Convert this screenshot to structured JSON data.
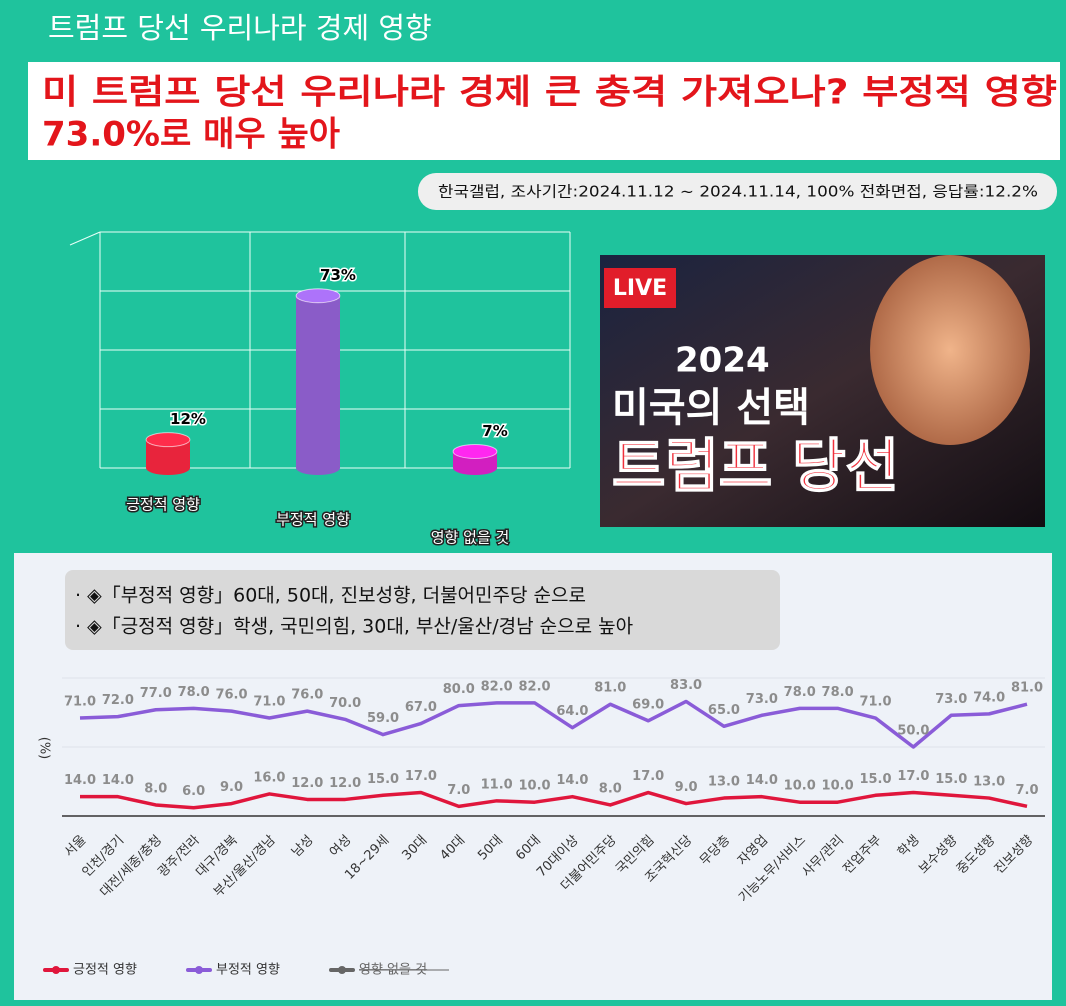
{
  "header": {
    "title": "트럼프 당선 우리나라 경제 영향",
    "headline": [
      "미 트럼프 당선 우리나라 경제 큰 충격 가져오나? 부정적 영향",
      "73.0%로 매우 높아"
    ],
    "source": "한국갤럽, 조사기간:2024.11.12 ~ 2024.11.14, 100% 전화면접, 응답률:12.2%"
  },
  "image": {
    "badge": "LIVE",
    "year": "2024",
    "subtitle": "미국의 선택",
    "caption": "트럼프 당선"
  },
  "bullets": [
    "· ◈「부정적 영향」60대, 50대, 진보성향, 더불어민주당 순으로",
    "· ◈「긍정적 영향」학생, 국민의힘, 30대, 부산/울산/경남 순으로 높아"
  ],
  "chart_data": [
    {
      "type": "cylinder",
      "categories": [
        "긍정적 영향",
        "부정적 영향",
        "영향 없을 것"
      ],
      "values": [
        12,
        73,
        7
      ],
      "value_labels": [
        "12%",
        "73%",
        "7%"
      ],
      "colors": [
        "#e8243c",
        "#8a5cc8",
        "#d21fc0"
      ],
      "ylim": [
        0,
        100
      ],
      "yticks": [
        0,
        25,
        50,
        75,
        100
      ],
      "grid": true
    },
    {
      "type": "line",
      "ylabel": "(%)",
      "categories": [
        "서울",
        "인천/경기",
        "대전/세종/충청",
        "광주/전라",
        "대구/경북",
        "부산/울산/경남",
        "남성",
        "여성",
        "18~29세",
        "30대",
        "40대",
        "50대",
        "60대",
        "70대이상",
        "더불어민주당",
        "국민의힘",
        "조국혁신당",
        "무당층",
        "자영업",
        "기능노무/서비스",
        "사무/관리",
        "전업주부",
        "학생",
        "보수성향",
        "중도성향",
        "진보성향"
      ],
      "series": [
        {
          "name": "긍정적 영향",
          "color": "#e0163c",
          "values": [
            14,
            14,
            8,
            6,
            9,
            16,
            12,
            12,
            15,
            17,
            7,
            11,
            10,
            14,
            8,
            17,
            9,
            13,
            14,
            10,
            10,
            15,
            17,
            15,
            13,
            7
          ],
          "value_labels": [
            "14.0",
            "14.0",
            "8.0",
            "6.0",
            "9.0",
            "16.0",
            "12.0",
            "12.0",
            "15.0",
            "17.0",
            "7.0",
            "11.0",
            "10.0",
            "14.0",
            "8.0",
            "17.0",
            "9.0",
            "13.0",
            "14.0",
            "10.0",
            "10.0",
            "15.0",
            "17.0",
            "15.0",
            "13.0",
            "7.0"
          ]
        },
        {
          "name": "부정적 영향",
          "color": "#8a5cd8",
          "values": [
            71,
            72,
            77,
            78,
            76,
            71,
            76,
            70,
            59,
            67,
            80,
            82,
            82,
            64,
            81,
            69,
            83,
            65,
            73,
            78,
            78,
            71,
            50,
            73,
            74,
            81
          ],
          "value_labels": [
            "71.0",
            "72.0",
            "77.0",
            "78.0",
            "76.0",
            "71.0",
            "76.0",
            "70.0",
            "59.0",
            "67.0",
            "80.0",
            "82.0",
            "82.0",
            "64.0",
            "81.0",
            "69.0",
            "83.0",
            "65.0",
            "73.0",
            "78.0",
            "78.0",
            "71.0",
            "50.0",
            "73.0",
            "74.0",
            "81.0"
          ]
        },
        {
          "name": "영향 없을 것",
          "color": "#666666",
          "hidden": true,
          "values": [
            null,
            null,
            null,
            null,
            null,
            null,
            null,
            null,
            null,
            null,
            null,
            null,
            null,
            null,
            null,
            null,
            null,
            null,
            null,
            null,
            null,
            null,
            null,
            null,
            null,
            null
          ]
        }
      ],
      "ylim": [
        0,
        100
      ],
      "yticks": [
        0,
        50,
        100
      ],
      "grid": true,
      "legend": "bottom-left"
    }
  ]
}
